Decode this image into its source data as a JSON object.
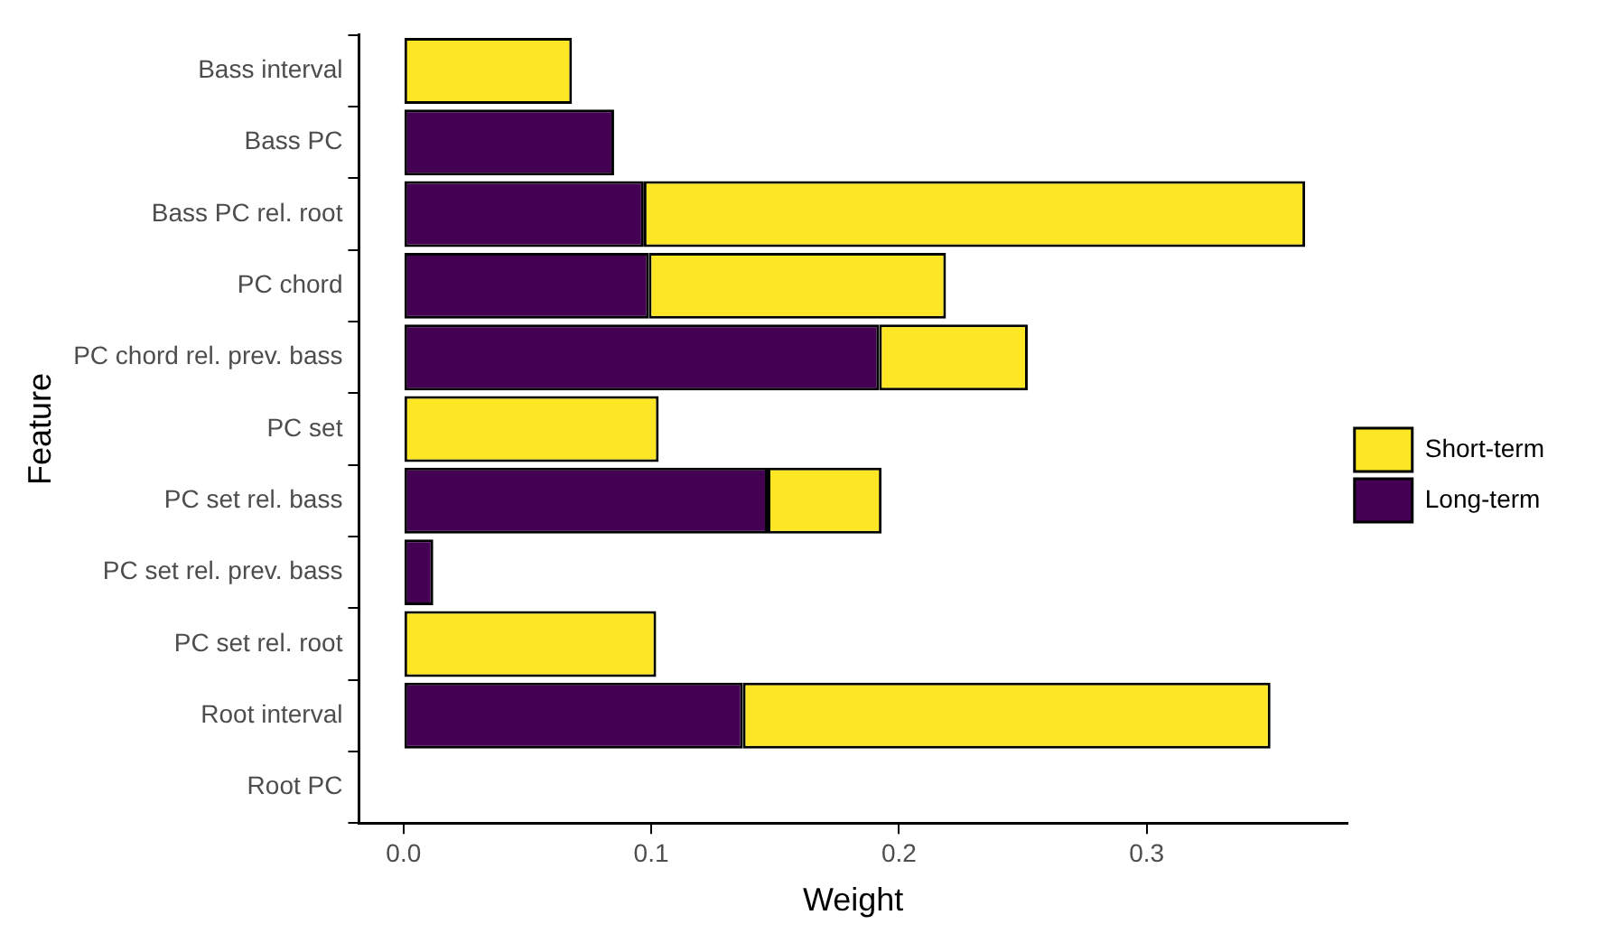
{
  "chart_data": {
    "type": "bar",
    "orientation": "horizontal",
    "stacked": true,
    "xlabel": "Weight",
    "ylabel": "Feature",
    "categories": [
      "Bass interval",
      "Bass PC",
      "Bass PC rel. root",
      "PC chord",
      "PC chord rel. prev. bass",
      "PC set",
      "PC set rel. bass",
      "PC set rel. prev. bass",
      "PC set rel. root",
      "Root interval",
      "Root PC"
    ],
    "series": [
      {
        "name": "Long-term",
        "color": "#440154",
        "values": [
          0,
          0.085,
          0.097,
          0.099,
          0.192,
          0,
          0.147,
          0.012,
          0,
          0.137,
          0
        ]
      },
      {
        "name": "Short-term",
        "color": "#fde725",
        "values": [
          0.068,
          0,
          0.267,
          0.12,
          0.06,
          0.103,
          0.046,
          0,
          0.102,
          0.213,
          0
        ]
      }
    ],
    "xlim": [
      -0.018,
      0.381
    ],
    "xticks": [
      {
        "value": 0,
        "label": "0.0"
      },
      0.1,
      0.2,
      0.3
    ],
    "grid": false,
    "legend": "right"
  }
}
